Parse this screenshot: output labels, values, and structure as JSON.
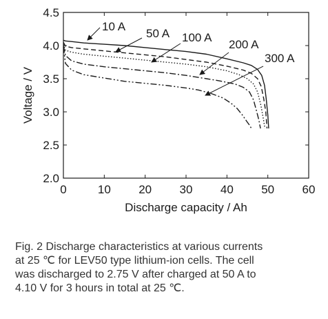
{
  "chart_data": {
    "type": "line",
    "title": "",
    "xlabel": "Discharge capacity / Ah",
    "ylabel": "Voltage / V",
    "xlim": [
      0,
      60
    ],
    "ylim": [
      2.0,
      4.5
    ],
    "xticks": [
      "0",
      "10",
      "20",
      "30",
      "40",
      "50",
      "60"
    ],
    "yticks": [
      "2.0",
      "2.5",
      "3.0",
      "3.5",
      "4.0",
      "4.5"
    ],
    "grid": false,
    "legend": "inline labels with leader arrows",
    "series": [
      {
        "name": "10 A",
        "dash": "solid",
        "x": [
          0,
          0.5,
          2,
          5,
          10,
          15,
          20,
          25,
          30,
          35,
          40,
          44,
          46,
          47.5,
          48.5,
          49.2,
          49.6,
          50,
          50.2
        ],
        "y": [
          4.08,
          4.07,
          4.06,
          4.04,
          4.02,
          4.0,
          3.97,
          3.94,
          3.91,
          3.87,
          3.8,
          3.74,
          3.7,
          3.64,
          3.55,
          3.4,
          3.2,
          2.95,
          2.75
        ]
      },
      {
        "name": "50 A",
        "dash": "dashed",
        "x": [
          0,
          0.5,
          2,
          5,
          10,
          15,
          20,
          25,
          30,
          35,
          40,
          44,
          46,
          47.5,
          48.4,
          49,
          49.5,
          49.8
        ],
        "y": [
          4.05,
          3.99,
          3.97,
          3.95,
          3.92,
          3.89,
          3.86,
          3.83,
          3.79,
          3.75,
          3.69,
          3.63,
          3.58,
          3.5,
          3.38,
          3.2,
          3.0,
          2.75
        ]
      },
      {
        "name": "100 A",
        "dash": "dotted",
        "x": [
          0,
          0.5,
          2,
          5,
          10,
          15,
          20,
          25,
          30,
          35,
          40,
          43,
          45,
          46.5,
          47.5,
          48.3,
          48.9,
          49.3
        ],
        "y": [
          4.02,
          3.93,
          3.9,
          3.87,
          3.84,
          3.81,
          3.78,
          3.75,
          3.72,
          3.68,
          3.62,
          3.56,
          3.5,
          3.42,
          3.3,
          3.1,
          2.9,
          2.75
        ]
      },
      {
        "name": "200 A",
        "dash": "dash-dot",
        "x": [
          0,
          0.5,
          2,
          5,
          10,
          15,
          20,
          25,
          30,
          35,
          38,
          42,
          44,
          45.5,
          46.5,
          47.2,
          47.8,
          48.2
        ],
        "y": [
          4.0,
          3.85,
          3.77,
          3.72,
          3.68,
          3.65,
          3.62,
          3.59,
          3.55,
          3.5,
          3.47,
          3.42,
          3.37,
          3.3,
          3.18,
          3.02,
          2.88,
          2.75
        ]
      },
      {
        "name": "300 A",
        "dash": "dash-dot-dot",
        "x": [
          0,
          0.5,
          2,
          5,
          10,
          15,
          20,
          25,
          30,
          33,
          36,
          39,
          41,
          42.5,
          43.8,
          44.8,
          45.5,
          46
        ],
        "y": [
          3.98,
          3.73,
          3.63,
          3.56,
          3.51,
          3.46,
          3.43,
          3.4,
          3.36,
          3.33,
          3.28,
          3.21,
          3.13,
          3.05,
          2.95,
          2.86,
          2.8,
          2.75
        ]
      }
    ]
  },
  "caption": {
    "line1": "Fig. 2   Discharge characteristics at various currents",
    "line2": "at 25 ℃ for LEV50 type lithium-ion cells. The cell",
    "line3": "was discharged to 2.75 V after charged at 50 A to",
    "line4": "4.10 V for 3 hours in total at 25 ℃."
  }
}
